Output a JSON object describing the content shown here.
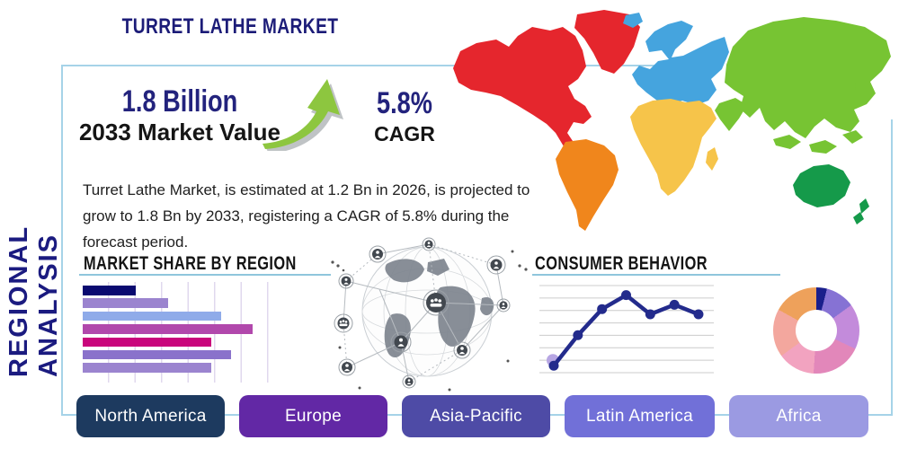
{
  "header": {
    "title": "TURRET LATHE MARKET",
    "side_label": "REGIONAL ANALYSIS"
  },
  "stats": {
    "market_value": "1.8 Billion",
    "market_value_caption": "2033 Market Value",
    "cagr_value": "5.8%",
    "cagr_caption": "CAGR",
    "trend_icon": "growth-arrow-up-icon",
    "trend_icon_color": "#8dc63f"
  },
  "description": "Turret Lathe Market, is estimated at 1.2 Bn in 2026, is projected to grow to 1.8 Bn by 2033, registering a CAGR of 5.8% during the forecast period.",
  "world_map": {
    "regions": [
      {
        "name": "North America",
        "color": "#e5262d"
      },
      {
        "name": "South America",
        "color": "#f0861c"
      },
      {
        "name": "Europe",
        "color": "#45a4de"
      },
      {
        "name": "Africa",
        "color": "#f6c44a"
      },
      {
        "name": "Asia",
        "color": "#77c433"
      },
      {
        "name": "Oceania",
        "color": "#159a4a"
      }
    ]
  },
  "chart_data": [
    {
      "type": "bar",
      "title": "MARKET SHARE BY REGION",
      "orientation": "horizontal",
      "values": [
        27,
        43,
        70,
        86,
        65,
        75,
        65
      ],
      "colors": [
        "#0a0a70",
        "#9b84cf",
        "#8fabe9",
        "#b148ac",
        "#c9067c",
        "#8a72cb",
        "#9b84cf"
      ],
      "xlim": [
        0,
        100
      ],
      "grid": "vertical"
    },
    {
      "type": "line",
      "title": "CONSUMER BEHAVIOR",
      "x": [
        1,
        2,
        3,
        4,
        5,
        6,
        7
      ],
      "values": [
        0.8,
        4.3,
        7.3,
        8.9,
        6.7,
        7.8,
        6.7
      ],
      "ylim": [
        0,
        10
      ],
      "grid": "horizontal",
      "line_color": "#232b8c",
      "start_marker_color": "#b7a6e3"
    },
    {
      "type": "pie",
      "donut": true,
      "segments": [
        {
          "color": "#1a1f8c",
          "value": 4
        },
        {
          "color": "#8672d4",
          "value": 11
        },
        {
          "color": "#c38bdb",
          "value": 17
        },
        {
          "color": "#e287ba",
          "value": 19
        },
        {
          "color": "#f2a3c0",
          "value": 14
        },
        {
          "color": "#f3a79e",
          "value": 18
        },
        {
          "color": "#eea15b",
          "value": 17
        }
      ]
    }
  ],
  "region_buttons": [
    {
      "label": "North America",
      "color": "#1d3a5f"
    },
    {
      "label": "Europe",
      "color": "#6228a5"
    },
    {
      "label": "Asia-Pacific",
      "color": "#4e4ba6"
    },
    {
      "label": "Latin America",
      "color": "#7170d8"
    },
    {
      "label": "Africa",
      "color": "#9b9ae2"
    }
  ],
  "theme": {
    "panel_border": "#a6d3e8",
    "title_underline": "#8fc6dc",
    "navy": "#1c1c78"
  }
}
